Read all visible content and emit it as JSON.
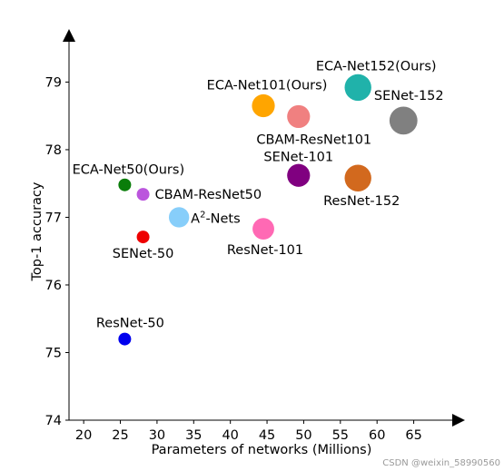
{
  "chart_data": {
    "type": "scatter",
    "xlabel": "Parameters of networks (Millions)",
    "ylabel": "Top-1 accuracy",
    "xlim": [
      18,
      70.5
    ],
    "ylim": [
      74,
      79.65
    ],
    "x_ticks": [
      20,
      25,
      30,
      35,
      40,
      45,
      50,
      55,
      60,
      65
    ],
    "y_ticks": [
      74,
      75,
      76,
      77,
      78,
      79
    ],
    "grid": false,
    "points": [
      {
        "label": "ResNet-50",
        "x": 25.6,
        "y": 75.2,
        "color": "#0000ee",
        "size": 1
      },
      {
        "label": "SENet-50",
        "x": 28.1,
        "y": 76.71,
        "color": "#ee0000",
        "size": 1
      },
      {
        "label": "ECA-Net50(Ours)",
        "x": 25.6,
        "y": 77.48,
        "color": "#0a7d0a",
        "size": 1
      },
      {
        "label": "CBAM-ResNet50",
        "x": 28.1,
        "y": 77.34,
        "color": "#bb55dd",
        "size": 1
      },
      {
        "label": "A2-Nets",
        "x": 33.0,
        "y": 77.0,
        "color": "#87cefa",
        "size": 1.6
      },
      {
        "label": "ResNet-101",
        "x": 44.5,
        "y": 76.83,
        "color": "#ff69b4",
        "size": 1.7
      },
      {
        "label": "ECA-Net101(Ours)",
        "x": 44.5,
        "y": 78.65,
        "color": "#ffa500",
        "size": 1.8
      },
      {
        "label": "CBAM-ResNet101",
        "x": 49.3,
        "y": 78.49,
        "color": "#f08080",
        "size": 1.8
      },
      {
        "label": "SENet-101",
        "x": 49.3,
        "y": 77.62,
        "color": "#800080",
        "size": 1.8
      },
      {
        "label": "ECA-Net152(Ours)",
        "x": 57.4,
        "y": 78.92,
        "color": "#20b2aa",
        "size": 2.1
      },
      {
        "label": "ResNet-152",
        "x": 57.4,
        "y": 77.58,
        "color": "#d2691e",
        "size": 2.1
      },
      {
        "label": "SENet-152",
        "x": 63.6,
        "y": 78.43,
        "color": "#808080",
        "size": 2.2
      }
    ]
  },
  "watermark": "CSDN @weixin_58990560"
}
